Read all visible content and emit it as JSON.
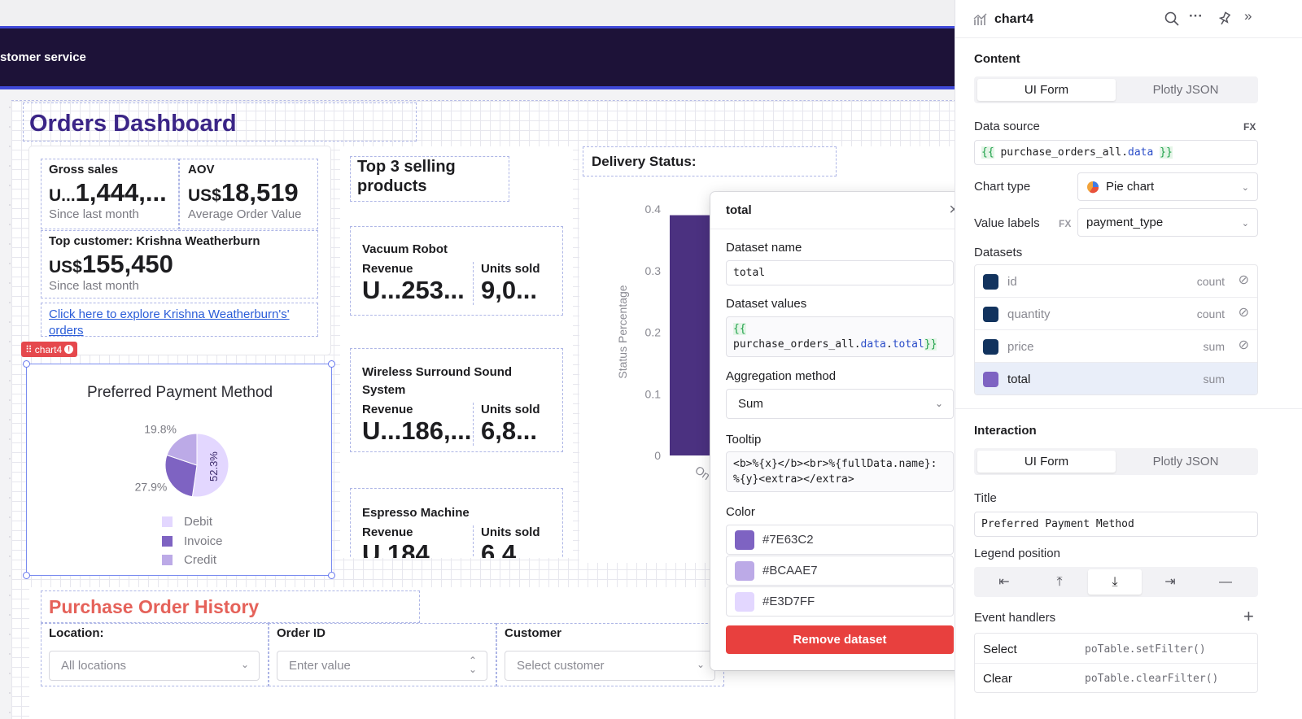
{
  "header": {
    "title": "stomer service"
  },
  "page": {
    "title": "Orders Dashboard"
  },
  "stats": {
    "gross_sales": {
      "label": "Gross sales",
      "value_prefix": "U...",
      "value": "1,444,...",
      "sub": "Since last month"
    },
    "aov": {
      "label": "AOV",
      "value_prefix": "US$",
      "value": "18,519",
      "sub": "Average Order Value"
    },
    "top_customer": {
      "label": "Top customer: Krishna Weatherburn",
      "value_prefix": "US$",
      "value": "155,450",
      "sub": "Since last month"
    },
    "link": "Click here to explore Krishna Weatherburn's' orders"
  },
  "chart4": {
    "tag": "chart4",
    "badge": "!",
    "chart_data": {
      "type": "pie",
      "title": "Preferred Payment Method",
      "categories": [
        "Debit",
        "Invoice",
        "Credit"
      ],
      "values": [
        52.3,
        27.9,
        19.8
      ],
      "labels": [
        "52.3%",
        "27.9%",
        "19.8%"
      ],
      "colors": [
        "#E3D7FF",
        "#7E63C2",
        "#BCAAE7"
      ],
      "legend": "bottom"
    }
  },
  "top3": {
    "title": "Top 3 selling products",
    "revenue_label": "Revenue",
    "units_label": "Units sold",
    "products": [
      {
        "name": "Vacuum Robot",
        "revenue": "U...253...",
        "units": "9,0..."
      },
      {
        "name": "Wireless Surround Sound System",
        "revenue": "U...186,...",
        "units": "6,8..."
      },
      {
        "name": "Espresso Machine",
        "revenue": "U 184",
        "units": "6 4"
      }
    ]
  },
  "delivery": {
    "title": "Delivery Status:",
    "chart_data": {
      "type": "bar",
      "ylabel": "Status Percentage",
      "yticks": [
        "0.4",
        "0.3",
        "0.2",
        "0.1",
        "0"
      ],
      "ylim": [
        0,
        0.4
      ],
      "categories": [
        "On"
      ],
      "values": [
        0.39
      ],
      "color": "#4B3180"
    }
  },
  "poh": {
    "title": "Purchase Order History",
    "location_label": "Location:",
    "location_value": "All locations",
    "order_label": "Order ID",
    "order_placeholder": "Enter value",
    "customer_label": "Customer",
    "customer_placeholder": "Select customer"
  },
  "popover": {
    "title": "total",
    "name_label": "Dataset name",
    "name_value": "total",
    "values_label": "Dataset values",
    "values_open": "{{",
    "values_obj": "purchase_orders_all",
    "values_dot1": ".",
    "values_prop": "data",
    "values_dot2": ".",
    "values_field": "total",
    "values_close": "}}",
    "agg_label": "Aggregation method",
    "agg_value": "Sum",
    "tooltip_label": "Tooltip",
    "tooltip_value": "<b>%{x}</b><br>%{fullData.name}: %{y}<extra></extra>",
    "color_label": "Color",
    "colors": [
      "#7E63C2",
      "#BCAAE7",
      "#E3D7FF"
    ],
    "remove_label": "Remove dataset"
  },
  "panel": {
    "name": "chart4",
    "content_title": "Content",
    "tabs": [
      "UI Form",
      "Plotly JSON"
    ],
    "data_source_label": "Data source",
    "fx": "FX",
    "data_source_open": "{{",
    "data_source_obj": "purchase_orders_all",
    "data_source_dot": ".",
    "data_source_prop": "data",
    "data_source_close": "}}",
    "chart_type_label": "Chart type",
    "chart_type_value": "Pie chart",
    "value_labels_label": "Value labels",
    "value_labels_value": "payment_type",
    "datasets_title": "Datasets",
    "datasets": [
      {
        "name": "id",
        "agg": "count",
        "color": "#12335E",
        "hidden": true
      },
      {
        "name": "quantity",
        "agg": "count",
        "color": "#12335E",
        "hidden": true
      },
      {
        "name": "price",
        "agg": "sum",
        "color": "#12335E",
        "hidden": true
      },
      {
        "name": "total",
        "agg": "sum",
        "color": "#7E63C2",
        "hidden": false
      }
    ],
    "interaction_title": "Interaction",
    "interaction_tabs": [
      "UI Form",
      "Plotly JSON"
    ],
    "title_label": "Title",
    "title_value": "Preferred Payment Method",
    "legend_label": "Legend position",
    "events_title": "Event handlers",
    "events": [
      {
        "name": "Select",
        "action": "poTable.setFilter()"
      },
      {
        "name": "Clear",
        "action": "poTable.clearFilter()"
      }
    ]
  }
}
